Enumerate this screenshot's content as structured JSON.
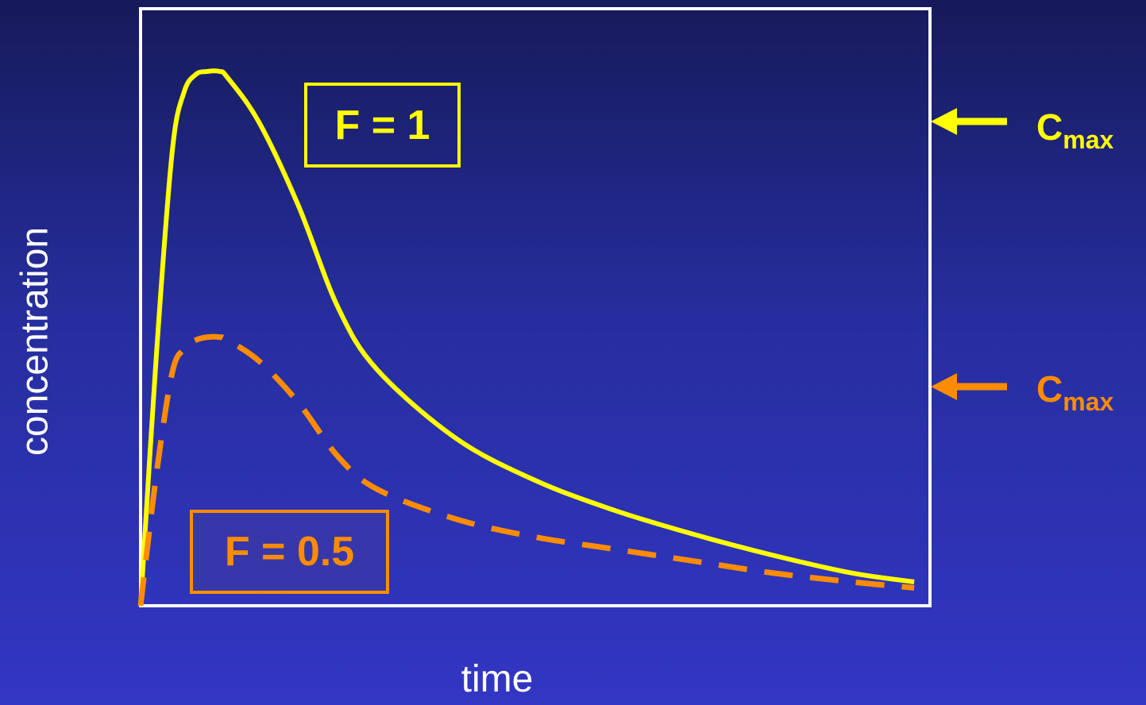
{
  "chart_data": {
    "type": "line",
    "xlabel": "time",
    "ylabel": "concentration",
    "xlim": [
      0,
      10
    ],
    "ylim": [
      0,
      10
    ],
    "grid": false,
    "series": [
      {
        "name": "F = 1",
        "style": "solid",
        "color": "#ffff00",
        "x": [
          0,
          0.2,
          0.4,
          0.55,
          0.7,
          0.85,
          1.0,
          1.1,
          1.5,
          2.0,
          2.5,
          3.0,
          4.0,
          5.0,
          6.0,
          7.0,
          8.0,
          9.0,
          9.8
        ],
        "y": [
          0,
          4.2,
          7.6,
          8.6,
          8.9,
          8.95,
          8.95,
          8.85,
          8.1,
          6.7,
          5.0,
          3.95,
          2.8,
          2.1,
          1.6,
          1.2,
          0.85,
          0.55,
          0.4
        ]
      },
      {
        "name": "F = 0.5",
        "style": "dashed",
        "color": "#ff8c00",
        "x": [
          0,
          0.2,
          0.4,
          0.55,
          0.7,
          0.85,
          1.0,
          1.1,
          1.5,
          2.0,
          2.5,
          3.0,
          4.0,
          5.0,
          6.0,
          7.0,
          8.0,
          9.0,
          9.8
        ],
        "y": [
          0,
          2.2,
          3.9,
          4.3,
          4.45,
          4.5,
          4.5,
          4.45,
          4.1,
          3.4,
          2.5,
          1.95,
          1.45,
          1.15,
          0.95,
          0.75,
          0.55,
          0.4,
          0.3
        ]
      }
    ]
  },
  "labels": {
    "f1": "F = 1",
    "f05": "F = 0.5",
    "cmax_main": "C",
    "cmax_sub": "max"
  },
  "colors": {
    "frame": "#ffffff",
    "f1": "#ffff00",
    "f05": "#ff8c00"
  }
}
